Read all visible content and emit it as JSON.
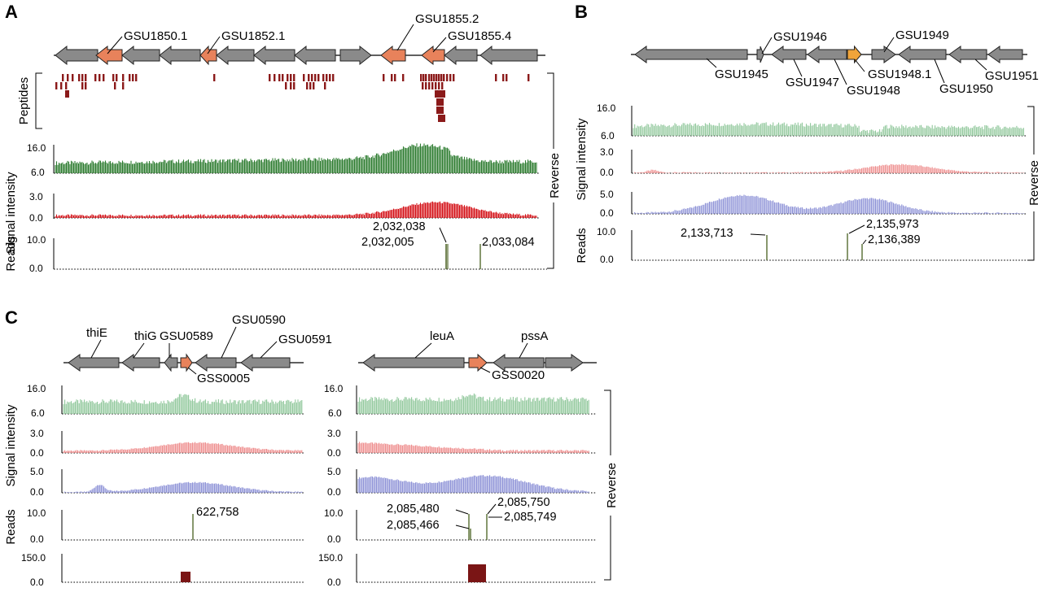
{
  "colors": {
    "gene_gray": "#8a8a8a",
    "gene_salmon": "#e8825b",
    "gene_orange": "#f0a43a",
    "peptide": "#8b1a1a",
    "green_dark": "#2f7d32",
    "green_light": "#8fc79a",
    "red_dark": "#d4141a",
    "red_light": "#ee8a8a",
    "blue_light": "#8a8fd6",
    "read_line": "#556b2f",
    "rna_box": "#7a1515"
  },
  "panels": [
    {
      "id": "A",
      "label": "A",
      "genes": [
        "GSU1850.1",
        "GSU1852.1",
        "GSU1855.2",
        "GSU1855.4"
      ],
      "peptides_label": "Peptides",
      "signal_label": "Signal intensity",
      "reads_label": "Reads",
      "strand_label": "Reverse",
      "ticks": {
        "green_top": "16.0",
        "green_bottom": "6.0",
        "red_top": "3.0",
        "red_bottom": "0.0",
        "reads_top": "10.0",
        "reads_bottom": "0.0"
      },
      "coords": [
        "2,032,038",
        "2,032,005",
        "2,033,084"
      ]
    },
    {
      "id": "B",
      "label": "B",
      "genes": [
        "GSU1946",
        "GSU1949",
        "GSU1945",
        "GSU1947",
        "GSU1948.1",
        "GSU1948",
        "GSU1950",
        "GSU1951"
      ],
      "signal_label": "Signal intensity",
      "reads_label": "Reads",
      "strand_label": "Reverse",
      "ticks": {
        "green_top": "16.0",
        "green_bottom": "6.0",
        "red_top": "3.0",
        "red_bottom": "0.0",
        "blue_top": "5.0",
        "blue_bottom": "0.0",
        "reads_top": "10.0",
        "reads_bottom": "0.0"
      },
      "coords": [
        "2,133,713",
        "2,135,973",
        "2,136,389"
      ]
    },
    {
      "id": "C",
      "label": "C",
      "left": {
        "genes": [
          "thiE",
          "thiG",
          "GSU0589",
          "GSU0590",
          "GSU0591",
          "GSS0005"
        ],
        "ticks": {
          "green_top": "16.0",
          "green_bottom": "6.0",
          "red_top": "3.0",
          "red_bottom": "0.0",
          "blue_top": "5.0",
          "blue_bottom": "0.0",
          "reads_top": "10.0",
          "reads_bottom": "0.0",
          "rna_top": "150.0",
          "rna_bottom": "0.0"
        },
        "coords": [
          "622,758"
        ]
      },
      "right": {
        "genes": [
          "leuA",
          "pssA",
          "GSS0020"
        ],
        "ticks": {
          "green_top": "16.0",
          "green_bottom": "6.0",
          "red_top": "3.0",
          "red_bottom": "0.0",
          "blue_top": "5.0",
          "blue_bottom": "0.0",
          "reads_top": "10.0",
          "reads_bottom": "0.0",
          "rna_top": "150.0",
          "rna_bottom": "0.0"
        },
        "coords": [
          "2,085,480",
          "2,085,750",
          "2,085,466",
          "2,085,749"
        ]
      },
      "signal_label": "Signal intensity",
      "reads_label": "Reads",
      "strand_label": "Reverse"
    }
  ]
}
